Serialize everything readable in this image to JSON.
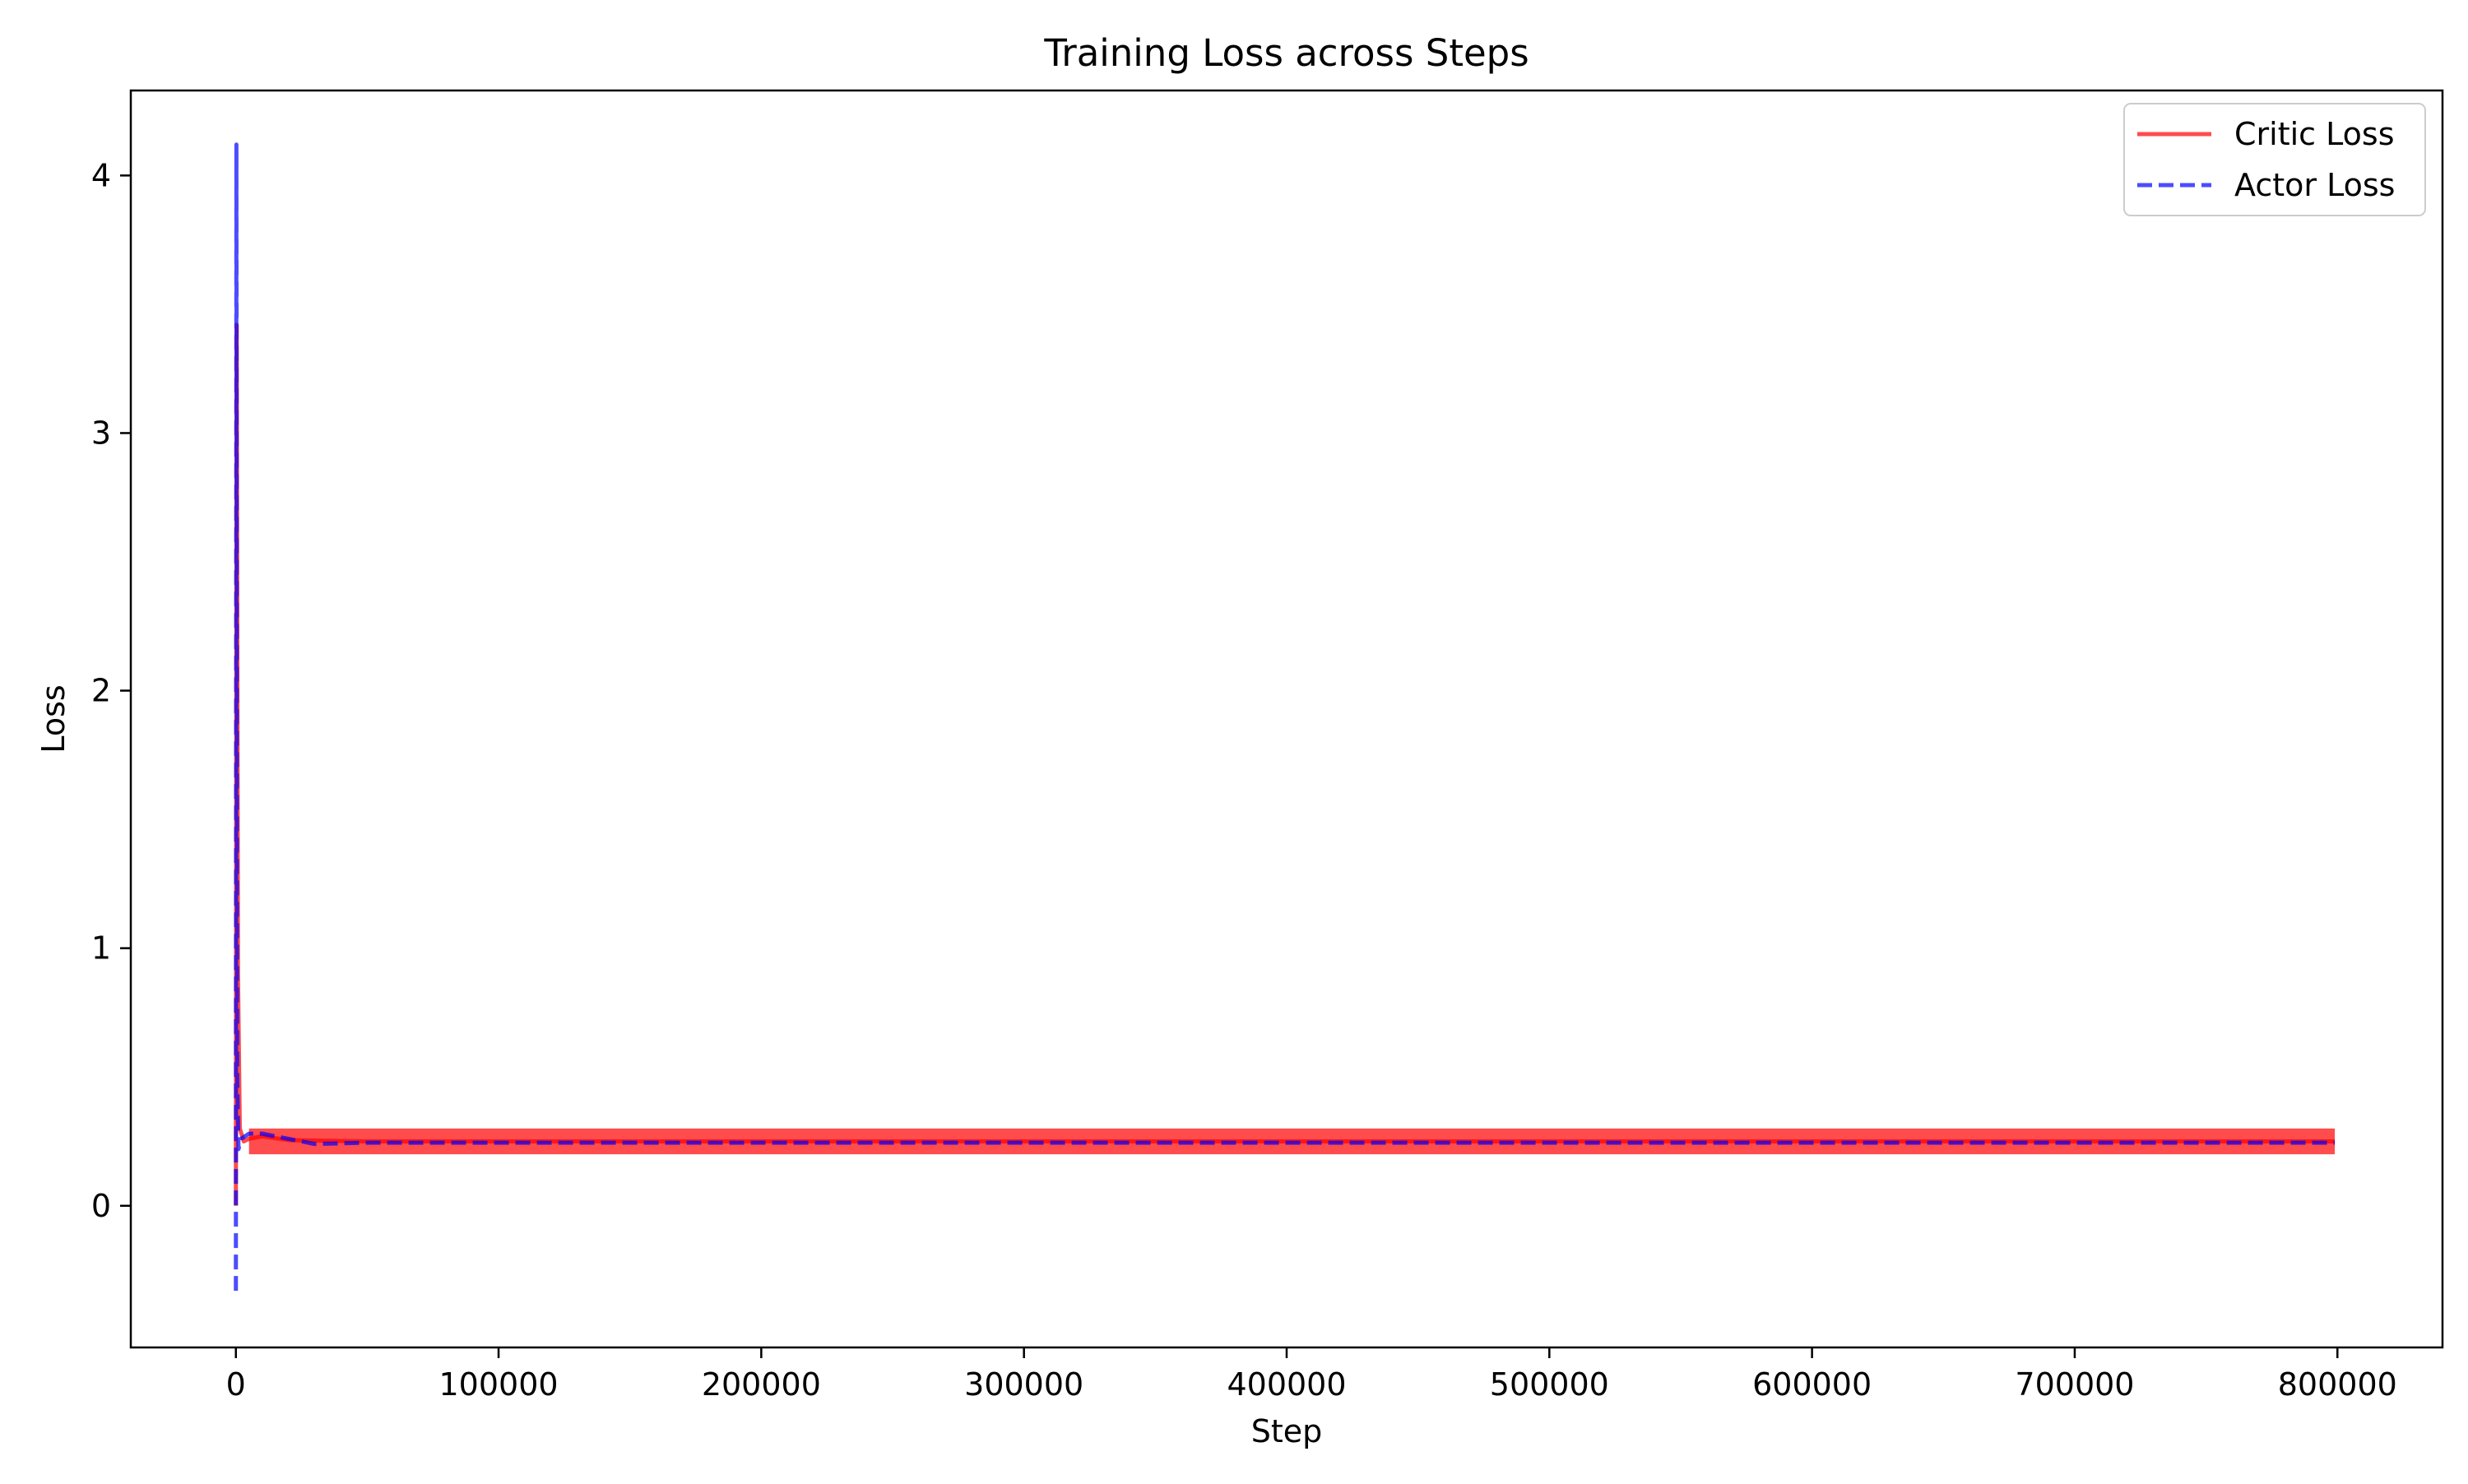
{
  "chart_data": {
    "type": "line",
    "title": "Training Loss across Steps",
    "xlabel": "Step",
    "ylabel": "Loss",
    "xlim": [
      -40000,
      840000
    ],
    "ylim": [
      -0.55,
      4.33
    ],
    "xticks": [
      0,
      100000,
      200000,
      300000,
      400000,
      500000,
      600000,
      700000,
      800000
    ],
    "xtick_labels": [
      "0",
      "100000",
      "200000",
      "300000",
      "400000",
      "500000",
      "600000",
      "700000",
      "800000"
    ],
    "yticks": [
      0,
      1,
      2,
      3,
      4
    ],
    "ytick_labels": [
      "0",
      "1",
      "2",
      "3",
      "4"
    ],
    "grid": false,
    "legend_position": "top-right",
    "series": [
      {
        "name": "Critic Loss",
        "color": "#ff0000",
        "style": "solid",
        "alpha": 0.7,
        "x": [
          0,
          300,
          800,
          1500,
          3000,
          5000,
          10000,
          20000,
          50000,
          100000,
          200000,
          300000,
          400000,
          500000,
          600000,
          700000,
          799000
        ],
        "y": [
          0.0,
          3.42,
          0.9,
          0.3,
          0.25,
          0.26,
          0.27,
          0.255,
          0.25,
          0.25,
          0.25,
          0.25,
          0.25,
          0.25,
          0.25,
          0.25,
          0.25
        ],
        "band": [
          0.2,
          0.3
        ]
      },
      {
        "name": "Actor Loss",
        "color": "#0000ff",
        "style": "dashed",
        "alpha": 0.7,
        "x": [
          0,
          200,
          500,
          1000,
          2000,
          5000,
          10000,
          15000,
          20000,
          30000,
          50000,
          100000,
          200000,
          300000,
          400000,
          500000,
          600000,
          700000,
          799000
        ],
        "y": [
          -0.33,
          4.12,
          0.5,
          0.22,
          0.26,
          0.28,
          0.28,
          0.27,
          0.26,
          0.24,
          0.245,
          0.245,
          0.245,
          0.245,
          0.245,
          0.245,
          0.245,
          0.245,
          0.245
        ]
      }
    ]
  }
}
